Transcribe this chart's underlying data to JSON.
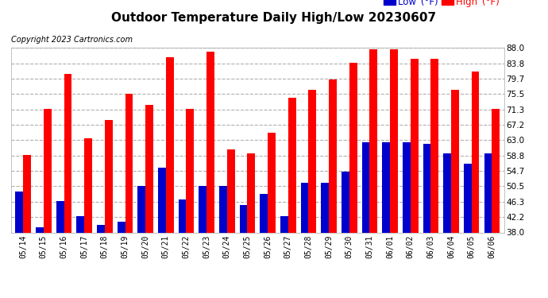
{
  "title": "Outdoor Temperature Daily High/Low 20230607",
  "copyright": "Copyright 2023 Cartronics.com",
  "dates": [
    "05/14",
    "05/15",
    "05/16",
    "05/17",
    "05/18",
    "05/19",
    "05/20",
    "05/21",
    "05/22",
    "05/23",
    "05/24",
    "05/25",
    "05/26",
    "05/27",
    "05/28",
    "05/29",
    "05/30",
    "05/31",
    "06/01",
    "06/02",
    "06/03",
    "06/04",
    "06/05",
    "06/06"
  ],
  "high": [
    59.0,
    71.5,
    81.0,
    63.5,
    68.5,
    75.5,
    72.5,
    85.5,
    71.5,
    87.0,
    60.5,
    59.5,
    65.0,
    74.5,
    76.5,
    79.5,
    84.0,
    87.5,
    87.5,
    85.0,
    85.0,
    76.5,
    81.5,
    71.5
  ],
  "low": [
    49.0,
    39.5,
    46.5,
    42.5,
    40.0,
    41.0,
    50.5,
    55.5,
    47.0,
    50.5,
    50.5,
    45.5,
    48.5,
    42.5,
    51.5,
    51.5,
    54.5,
    62.5,
    62.5,
    62.5,
    62.0,
    59.5,
    56.5,
    59.5
  ],
  "ylim": [
    38.0,
    88.0
  ],
  "yticks": [
    38.0,
    42.2,
    46.3,
    50.5,
    54.7,
    58.8,
    63.0,
    67.2,
    71.3,
    75.5,
    79.7,
    83.8,
    88.0
  ],
  "ytick_labels": [
    "38.0",
    "42.2",
    "46.3",
    "50.5",
    "54.7",
    "58.8",
    "63.0",
    "67.2",
    "71.3",
    "75.5",
    "79.7",
    "83.8",
    "88.0"
  ],
  "color_high": "#ff0000",
  "color_low": "#0000cc",
  "bg_color": "#ffffff",
  "grid_color": "#b0b0b0",
  "title_fontsize": 11,
  "copyright_fontsize": 7,
  "bar_width": 0.38
}
